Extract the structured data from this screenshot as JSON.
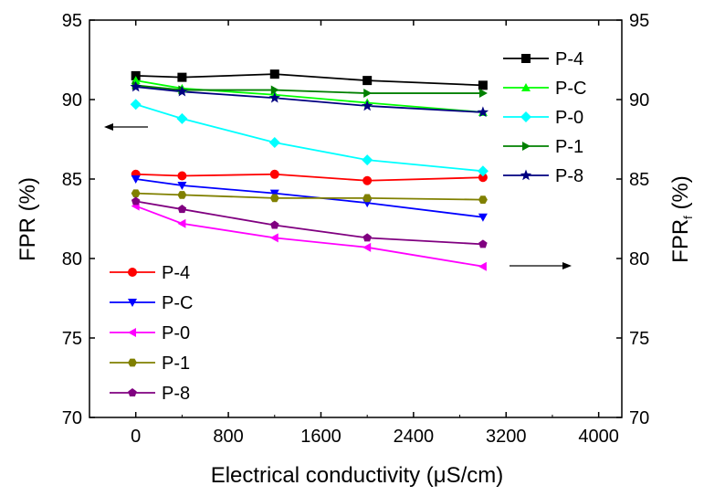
{
  "chart_data": {
    "type": "line",
    "xlabel": "Electrical conductivity (μS/cm)",
    "ylabel_left": "FPR (%)",
    "ylabel_right_main": "FPR",
    "ylabel_right_sub": "f",
    "ylabel_right_unit": " (%)",
    "xlim": [
      -400,
      4200
    ],
    "xticks": [
      0,
      800,
      1600,
      2400,
      3200,
      4000
    ],
    "ylim": [
      70,
      95
    ],
    "yticks": [
      70,
      75,
      80,
      85,
      90,
      95
    ],
    "x": [
      0,
      400,
      1200,
      2000,
      3000
    ],
    "series_left": [
      {
        "name": "P-4",
        "color": "#ff0000",
        "marker": "circle",
        "values": [
          85.3,
          85.2,
          85.3,
          84.9,
          85.1
        ]
      },
      {
        "name": "P-C",
        "color": "#0000ff",
        "marker": "triangle-down",
        "values": [
          85.0,
          84.6,
          84.1,
          83.5,
          82.6
        ]
      },
      {
        "name": "P-0",
        "color": "#ff00ff",
        "marker": "triangle-left",
        "values": [
          83.3,
          82.2,
          81.3,
          80.7,
          79.5
        ]
      },
      {
        "name": "P-1",
        "color": "#808000",
        "marker": "hexagon",
        "values": [
          84.1,
          84.0,
          83.8,
          83.8,
          83.7
        ]
      },
      {
        "name": "P-8",
        "color": "#800080",
        "marker": "pentagon",
        "values": [
          83.6,
          83.1,
          82.1,
          81.3,
          80.9
        ]
      }
    ],
    "series_right": [
      {
        "name": "P-4",
        "color": "#000000",
        "marker": "square",
        "values": [
          91.5,
          91.4,
          91.6,
          91.2,
          90.9
        ]
      },
      {
        "name": "P-C",
        "color": "#00ff00",
        "marker": "triangle-up",
        "values": [
          91.2,
          90.7,
          90.3,
          89.8,
          89.2
        ]
      },
      {
        "name": "P-0",
        "color": "#00ffff",
        "marker": "diamond",
        "values": [
          89.7,
          88.8,
          87.3,
          86.2,
          85.5
        ]
      },
      {
        "name": "P-1",
        "color": "#008000",
        "marker": "triangle-right",
        "values": [
          90.9,
          90.6,
          90.6,
          90.4,
          90.4
        ]
      },
      {
        "name": "P-8",
        "color": "#000080",
        "marker": "star",
        "values": [
          90.8,
          90.5,
          90.1,
          89.6,
          89.2
        ]
      }
    ],
    "legend_left_placement": "bottom-left",
    "legend_right_placement": "top-right",
    "arrows": [
      {
        "direction": "left",
        "refers_to": "left axis"
      },
      {
        "direction": "right",
        "refers_to": "right axis"
      }
    ],
    "grid": false
  }
}
